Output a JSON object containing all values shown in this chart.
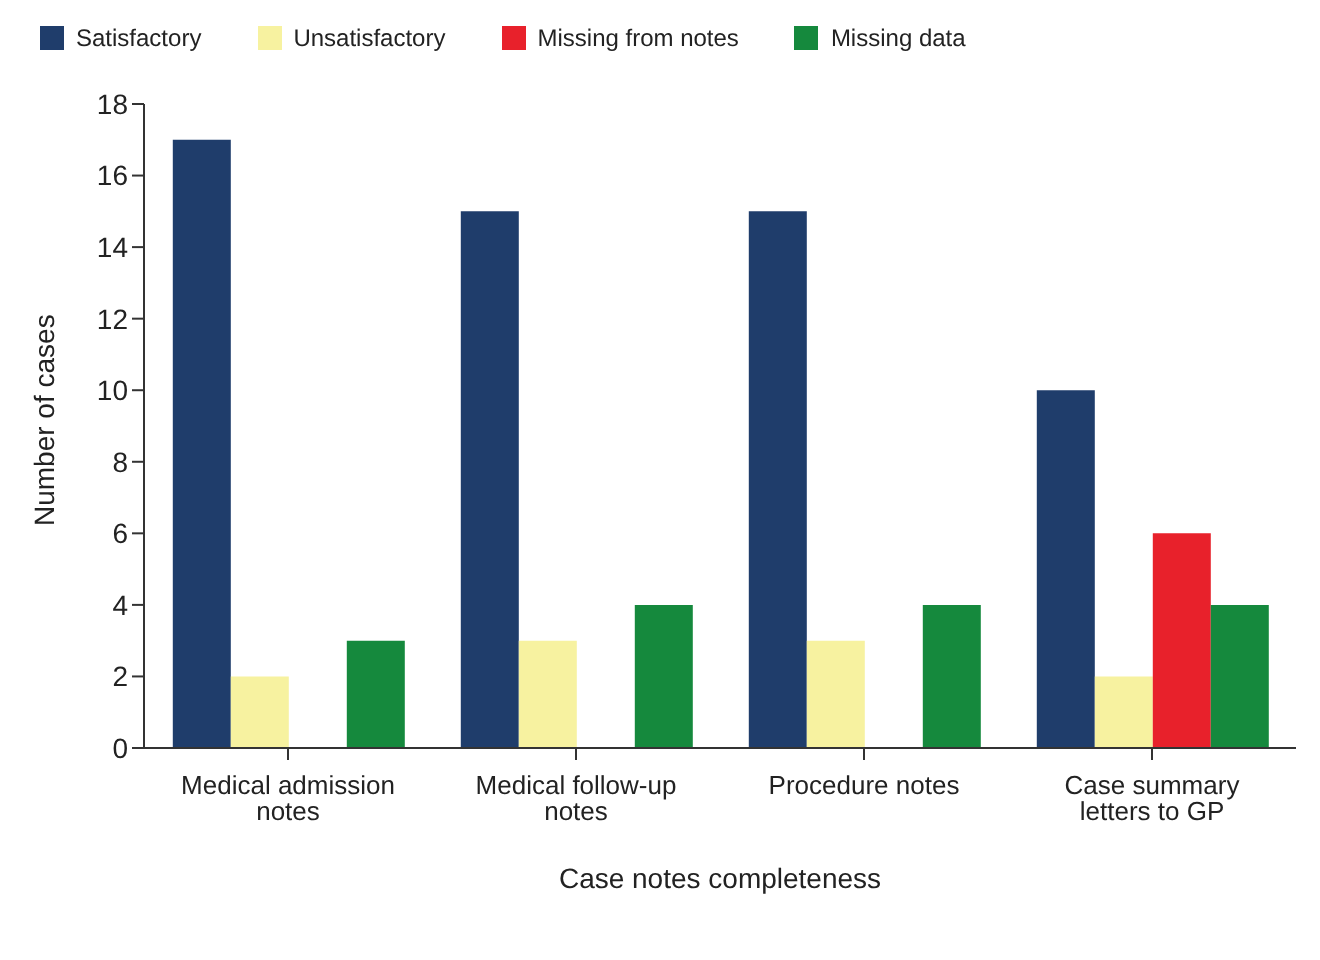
{
  "chart_data": {
    "type": "bar",
    "xlabel": "Case notes completeness",
    "ylabel": "Number of cases",
    "categories": [
      "Medical admission notes",
      "Medical follow-up notes",
      "Procedure notes",
      "Case summary letters to GP"
    ],
    "series": [
      {
        "name": "Satisfactory",
        "color": "#1f3d6b",
        "values": [
          17,
          15,
          15,
          10
        ]
      },
      {
        "name": "Unsatisfactory",
        "color": "#f7f2a0",
        "values": [
          2,
          3,
          3,
          2
        ]
      },
      {
        "name": "Missing from notes",
        "color": "#e8212b",
        "values": [
          null,
          null,
          null,
          6
        ]
      },
      {
        "name": "Missing data",
        "color": "#15893d",
        "values": [
          3,
          4,
          4,
          4
        ]
      }
    ],
    "ylim": [
      0,
      18
    ],
    "yticks": [
      0,
      2,
      4,
      6,
      8,
      10,
      12,
      14,
      16,
      18
    ],
    "grid": false,
    "legend": "top"
  }
}
